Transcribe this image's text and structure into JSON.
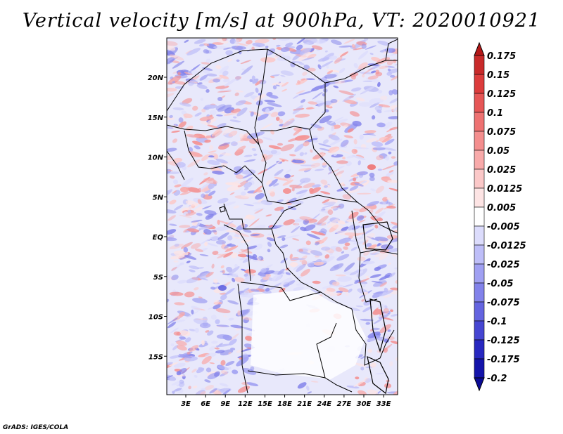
{
  "title": "Vertical velocity [m/s] at 900hPa, VT: 2020010921",
  "credit": "GrADS: IGES/COLA",
  "map": {
    "lat_ticks": [
      "20N",
      "15N",
      "10N",
      "5N",
      "EQ",
      "5S",
      "10S",
      "15S"
    ],
    "lon_ticks": [
      "3E",
      "6E",
      "9E",
      "12E",
      "15E",
      "18E",
      "21E",
      "24E",
      "27E",
      "30E",
      "33E"
    ]
  },
  "colorbar": {
    "labels": [
      "0.175",
      "0.15",
      "0.125",
      "0.1",
      "0.075",
      "0.05",
      "0.025",
      "0.0125",
      "0.005",
      "-0.005",
      "-0.0125",
      "-0.025",
      "-0.05",
      "-0.075",
      "-0.1",
      "-0.125",
      "-0.175",
      "-0.2"
    ],
    "colors": [
      "#b41818",
      "#c82a2a",
      "#dc3c3c",
      "#e65656",
      "#ee7272",
      "#f48e8e",
      "#f8aaaa",
      "#fbc8c8",
      "#fde4e4",
      "#ffffff",
      "#dcdcfc",
      "#bebef8",
      "#a0a0f2",
      "#8282ea",
      "#6464e0",
      "#4646d2",
      "#2828c0",
      "#1414aa",
      "#0a0a96"
    ]
  }
}
